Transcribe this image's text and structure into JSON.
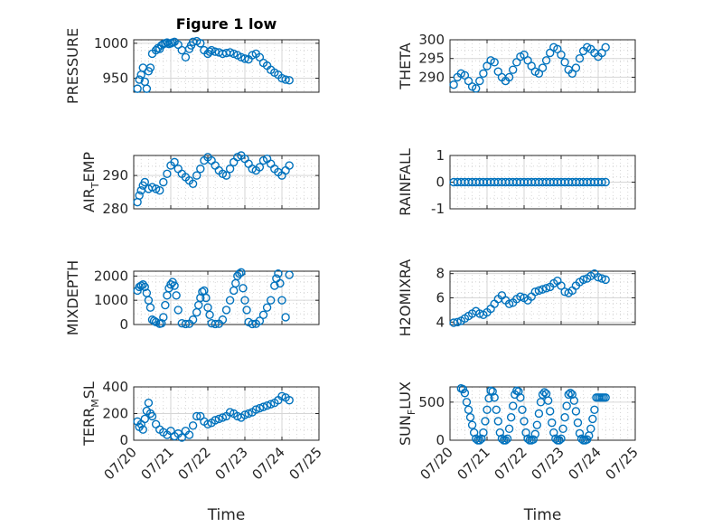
{
  "figure_title": "Figure 1 low",
  "chart_data": [
    {
      "id": "pressure",
      "type": "scatter",
      "title": "Figure 1 low",
      "ylabel": "PRESSURE",
      "xlabel": "",
      "xlim": [
        0,
        5
      ],
      "ylim": [
        930,
        1005
      ],
      "yticks": [
        950,
        1000
      ],
      "ytick_labels": [
        "950",
        "1000"
      ],
      "xticks": [
        0,
        1,
        2,
        3,
        4,
        5
      ],
      "xtick_labels": [],
      "grid": true,
      "color": "#0072BD",
      "series": [
        {
          "x": [
            0.1,
            0.15,
            0.2,
            0.25,
            0.3,
            0.35,
            0.4,
            0.45,
            0.5,
            0.6,
            0.65,
            0.7,
            0.75,
            0.8,
            0.85,
            0.9,
            0.95,
            1.0,
            1.05,
            1.1,
            1.2,
            1.3,
            1.4,
            1.5,
            1.55,
            1.6,
            1.7,
            1.8,
            1.9,
            2.0,
            2.05,
            2.1,
            2.2,
            2.3,
            2.4,
            2.5,
            2.6,
            2.7,
            2.8,
            2.9,
            3.0,
            3.1,
            3.2,
            3.3,
            3.4,
            3.5,
            3.6,
            3.7,
            3.8,
            3.9,
            4.0,
            4.1,
            4.2
          ],
          "y": [
            935,
            948,
            955,
            965,
            945,
            935,
            960,
            965,
            985,
            990,
            993,
            992,
            997,
            999,
            1000,
            1001,
            999,
            1000,
            1001,
            1002,
            998,
            990,
            980,
            992,
            997,
            1002,
            1003,
            1000,
            990,
            985,
            988,
            990,
            988,
            987,
            985,
            986,
            987,
            985,
            983,
            980,
            978,
            977,
            983,
            985,
            980,
            972,
            968,
            962,
            958,
            955,
            950,
            948,
            947
          ]
        }
      ]
    },
    {
      "id": "theta",
      "type": "scatter",
      "title": "",
      "ylabel": "THETA",
      "xlabel": "",
      "xlim": [
        0,
        5
      ],
      "ylim": [
        286,
        300
      ],
      "yticks": [
        290,
        295,
        300
      ],
      "ytick_labels": [
        "290",
        "295",
        "300"
      ],
      "xticks": [
        0,
        1,
        2,
        3,
        4,
        5
      ],
      "xtick_labels": [],
      "grid": true,
      "color": "#0072BD",
      "series": [
        {
          "x": [
            0.1,
            0.2,
            0.3,
            0.4,
            0.5,
            0.6,
            0.7,
            0.8,
            0.9,
            1.0,
            1.1,
            1.2,
            1.3,
            1.4,
            1.5,
            1.6,
            1.7,
            1.8,
            1.9,
            2.0,
            2.1,
            2.2,
            2.3,
            2.4,
            2.5,
            2.6,
            2.7,
            2.8,
            2.9,
            3.0,
            3.1,
            3.2,
            3.3,
            3.4,
            3.5,
            3.6,
            3.7,
            3.8,
            3.9,
            4.0,
            4.1,
            4.2
          ],
          "y": [
            288,
            290,
            291,
            290.5,
            289,
            287.5,
            287,
            289,
            291,
            293,
            294.5,
            294,
            291.5,
            290,
            289,
            290,
            292,
            294,
            295.5,
            296,
            294.5,
            293,
            291.5,
            291,
            292.5,
            294.5,
            296.5,
            298,
            297.5,
            296,
            294,
            292,
            291,
            292.5,
            295,
            297,
            298,
            297.5,
            296.5,
            295.5,
            296.5,
            298
          ]
        }
      ]
    },
    {
      "id": "air_temp",
      "type": "scatter",
      "title": "",
      "ylabel": "AIR_TEMP",
      "ylabel_parts": {
        "main": "AIR",
        "sub": "T",
        "rest": "EMP"
      },
      "xlabel": "",
      "xlim": [
        0,
        5
      ],
      "ylim": [
        280,
        296
      ],
      "yticks": [
        280,
        290
      ],
      "ytick_labels": [
        "280",
        "290"
      ],
      "xticks": [
        0,
        1,
        2,
        3,
        4,
        5
      ],
      "xtick_labels": [],
      "grid": true,
      "color": "#0072BD",
      "series": [
        {
          "x": [
            0.1,
            0.15,
            0.2,
            0.25,
            0.3,
            0.4,
            0.5,
            0.6,
            0.7,
            0.8,
            0.9,
            1.0,
            1.1,
            1.2,
            1.3,
            1.4,
            1.5,
            1.6,
            1.7,
            1.8,
            1.9,
            2.0,
            2.1,
            2.2,
            2.3,
            2.4,
            2.5,
            2.6,
            2.7,
            2.8,
            2.9,
            3.0,
            3.1,
            3.2,
            3.3,
            3.4,
            3.5,
            3.6,
            3.7,
            3.8,
            3.9,
            4.0,
            4.1,
            4.2
          ],
          "y": [
            282,
            284,
            285.5,
            287,
            288,
            286,
            286.5,
            286,
            285.5,
            288,
            290.5,
            293,
            294,
            292,
            290.5,
            289.5,
            288.5,
            287.5,
            290,
            292,
            294.5,
            295.5,
            294.5,
            293,
            291.5,
            290.5,
            290,
            292,
            294,
            295.5,
            296,
            295,
            293.5,
            292,
            291.5,
            292.5,
            294.5,
            295,
            293.5,
            292,
            291,
            290,
            291.5,
            293
          ]
        }
      ]
    },
    {
      "id": "rainfall",
      "type": "scatter",
      "title": "",
      "ylabel": "RAINFALL",
      "xlabel": "",
      "xlim": [
        0,
        5
      ],
      "ylim": [
        -1,
        1
      ],
      "yticks": [
        -1,
        0,
        1
      ],
      "ytick_labels": [
        "-1",
        "0",
        "1"
      ],
      "xticks": [
        0,
        1,
        2,
        3,
        4,
        5
      ],
      "xtick_labels": [],
      "grid": true,
      "color": "#0072BD",
      "series": [
        {
          "x": [
            0.1,
            0.2,
            0.3,
            0.4,
            0.5,
            0.6,
            0.7,
            0.8,
            0.9,
            1.0,
            1.1,
            1.2,
            1.3,
            1.4,
            1.5,
            1.6,
            1.7,
            1.8,
            1.9,
            2.0,
            2.1,
            2.2,
            2.3,
            2.4,
            2.5,
            2.6,
            2.7,
            2.8,
            2.9,
            3.0,
            3.1,
            3.2,
            3.3,
            3.4,
            3.5,
            3.6,
            3.7,
            3.8,
            3.9,
            4.0,
            4.1,
            4.2
          ],
          "y": [
            0,
            0,
            0,
            0,
            0,
            0,
            0,
            0,
            0,
            0,
            0,
            0,
            0,
            0,
            0,
            0,
            0,
            0,
            0,
            0,
            0,
            0,
            0,
            0,
            0,
            0,
            0,
            0,
            0,
            0,
            0,
            0,
            0,
            0,
            0,
            0,
            0,
            0,
            0,
            0,
            0,
            0
          ]
        }
      ]
    },
    {
      "id": "mixdepth",
      "type": "scatter",
      "title": "",
      "ylabel": "MIXDEPTH",
      "xlabel": "",
      "xlim": [
        0,
        5
      ],
      "ylim": [
        0,
        2200
      ],
      "yticks": [
        0,
        1000,
        2000
      ],
      "ytick_labels": [
        "0",
        "1000",
        "2000"
      ],
      "xticks": [
        0,
        1,
        2,
        3,
        4,
        5
      ],
      "xtick_labels": [],
      "grid": true,
      "color": "#0072BD",
      "series": [
        {
          "x": [
            0.1,
            0.15,
            0.2,
            0.25,
            0.3,
            0.35,
            0.4,
            0.45,
            0.5,
            0.55,
            0.6,
            0.7,
            0.75,
            0.8,
            0.85,
            0.9,
            0.95,
            1.0,
            1.05,
            1.1,
            1.15,
            1.2,
            1.3,
            1.4,
            1.5,
            1.6,
            1.7,
            1.75,
            1.8,
            1.85,
            1.9,
            1.95,
            2.0,
            2.05,
            2.1,
            2.2,
            2.3,
            2.4,
            2.5,
            2.6,
            2.7,
            2.75,
            2.8,
            2.85,
            2.9,
            2.95,
            3.0,
            3.05,
            3.1,
            3.2,
            3.3,
            3.4,
            3.5,
            3.6,
            3.7,
            3.8,
            3.85,
            3.9,
            3.95,
            4.0,
            4.1,
            4.2
          ],
          "y": [
            1400,
            1550,
            1600,
            1650,
            1550,
            1300,
            1000,
            700,
            200,
            150,
            100,
            30,
            50,
            300,
            800,
            1200,
            1500,
            1650,
            1750,
            1600,
            1200,
            600,
            50,
            20,
            30,
            200,
            500,
            800,
            1100,
            1350,
            1400,
            1100,
            700,
            400,
            50,
            20,
            30,
            200,
            600,
            1000,
            1400,
            1700,
            2000,
            2100,
            2150,
            1500,
            1000,
            600,
            100,
            20,
            30,
            150,
            400,
            700,
            1000,
            1600,
            1900,
            2100,
            1700,
            1000,
            300,
            2050
          ]
        }
      ]
    },
    {
      "id": "h2omixra",
      "type": "scatter",
      "title": "",
      "ylabel": "H2OMIXRA",
      "xlabel": "",
      "xlim": [
        0,
        5
      ],
      "ylim": [
        3.8,
        8.2
      ],
      "yticks": [
        4,
        6,
        8
      ],
      "ytick_labels": [
        "4",
        "6",
        "8"
      ],
      "xticks": [
        0,
        1,
        2,
        3,
        4,
        5
      ],
      "xtick_labels": [],
      "grid": true,
      "color": "#0072BD",
      "series": [
        {
          "x": [
            0.1,
            0.2,
            0.3,
            0.4,
            0.5,
            0.6,
            0.7,
            0.8,
            0.9,
            1.0,
            1.1,
            1.2,
            1.3,
            1.4,
            1.5,
            1.6,
            1.7,
            1.8,
            1.9,
            2.0,
            2.1,
            2.2,
            2.3,
            2.4,
            2.5,
            2.6,
            2.7,
            2.8,
            2.9,
            3.0,
            3.1,
            3.2,
            3.3,
            3.4,
            3.5,
            3.6,
            3.7,
            3.8,
            3.9,
            4.0,
            4.1,
            4.2
          ],
          "y": [
            3.95,
            4.0,
            4.1,
            4.3,
            4.5,
            4.7,
            4.9,
            4.7,
            4.6,
            4.8,
            5.1,
            5.5,
            5.9,
            6.2,
            5.8,
            5.5,
            5.6,
            5.9,
            6.1,
            6.0,
            5.8,
            6.1,
            6.5,
            6.6,
            6.7,
            6.8,
            6.9,
            7.2,
            7.4,
            7.0,
            6.5,
            6.4,
            6.6,
            7.0,
            7.3,
            7.5,
            7.6,
            7.8,
            8.0,
            7.7,
            7.6,
            7.5
          ]
        }
      ]
    },
    {
      "id": "terr_msl",
      "type": "scatter",
      "title": "",
      "ylabel": "TERR_MSL",
      "ylabel_parts": {
        "main": "TERR",
        "sub": "M",
        "rest": "SL"
      },
      "xlabel": "Time",
      "xlim": [
        0,
        5
      ],
      "ylim": [
        0,
        400
      ],
      "yticks": [
        0,
        200,
        400
      ],
      "ytick_labels": [
        "0",
        "200",
        "400"
      ],
      "xticks": [
        0,
        1,
        2,
        3,
        4,
        5
      ],
      "xtick_labels": [
        "07/20",
        "07/21",
        "07/22",
        "07/23",
        "07/24",
        "07/25"
      ],
      "grid": true,
      "color": "#0072BD",
      "series": [
        {
          "x": [
            0.1,
            0.15,
            0.2,
            0.25,
            0.3,
            0.35,
            0.4,
            0.45,
            0.5,
            0.6,
            0.7,
            0.8,
            0.9,
            1.0,
            1.1,
            1.2,
            1.3,
            1.4,
            1.5,
            1.6,
            1.7,
            1.8,
            1.9,
            2.0,
            2.1,
            2.2,
            2.3,
            2.4,
            2.5,
            2.6,
            2.7,
            2.8,
            2.9,
            3.0,
            3.1,
            3.2,
            3.3,
            3.4,
            3.5,
            3.6,
            3.7,
            3.8,
            3.9,
            4.0,
            4.1,
            4.2
          ],
          "y": [
            140,
            100,
            120,
            80,
            160,
            220,
            280,
            200,
            180,
            120,
            80,
            60,
            40,
            70,
            30,
            50,
            20,
            70,
            40,
            110,
            180,
            180,
            140,
            120,
            130,
            150,
            160,
            170,
            180,
            210,
            200,
            180,
            170,
            190,
            200,
            210,
            230,
            240,
            250,
            260,
            270,
            280,
            300,
            330,
            320,
            300
          ]
        }
      ]
    },
    {
      "id": "sun_flux",
      "type": "scatter",
      "title": "",
      "ylabel": "SUN_FLUX",
      "ylabel_parts": {
        "main": "SUN",
        "sub": "F",
        "rest": "LUX"
      },
      "xlabel": "Time",
      "xlim": [
        0,
        5
      ],
      "ylim": [
        0,
        700
      ],
      "yticks": [
        0,
        500
      ],
      "ytick_labels": [
        "0",
        "500"
      ],
      "xticks": [
        0,
        1,
        2,
        3,
        4,
        5
      ],
      "xtick_labels": [
        "07/20",
        "07/21",
        "07/22",
        "07/23",
        "07/24",
        "07/25"
      ],
      "grid": true,
      "color": "#0072BD",
      "series": [
        {
          "x": [
            0.3,
            0.35,
            0.4,
            0.45,
            0.5,
            0.55,
            0.6,
            0.65,
            0.7,
            0.75,
            0.8,
            0.85,
            0.9,
            0.95,
            1.0,
            1.05,
            1.1,
            1.15,
            1.2,
            1.25,
            1.3,
            1.35,
            1.4,
            1.45,
            1.5,
            1.55,
            1.6,
            1.65,
            1.7,
            1.75,
            1.8,
            1.85,
            1.9,
            1.95,
            2.0,
            2.05,
            2.1,
            2.15,
            2.2,
            2.25,
            2.3,
            2.35,
            2.4,
            2.45,
            2.5,
            2.55,
            2.6,
            2.65,
            2.7,
            2.75,
            2.8,
            2.85,
            2.9,
            2.95,
            3.0,
            3.05,
            3.1,
            3.15,
            3.2,
            3.25,
            3.3,
            3.35,
            3.4,
            3.45,
            3.5,
            3.55,
            3.6,
            3.65,
            3.7,
            3.75,
            3.8,
            3.85,
            3.9,
            3.95,
            4.0,
            4.05,
            4.1,
            4.15,
            4.2
          ],
          "y": [
            680,
            670,
            620,
            500,
            400,
            300,
            200,
            100,
            20,
            0,
            0,
            20,
            100,
            250,
            400,
            550,
            650,
            640,
            560,
            400,
            250,
            100,
            20,
            0,
            0,
            20,
            150,
            300,
            450,
            600,
            650,
            640,
            560,
            400,
            250,
            100,
            20,
            0,
            0,
            10,
            80,
            200,
            350,
            500,
            600,
            630,
            610,
            520,
            380,
            230,
            100,
            20,
            0,
            0,
            20,
            150,
            300,
            450,
            600,
            620,
            600,
            520,
            380,
            230,
            90,
            20,
            0,
            0,
            10,
            60,
            150,
            280,
            400,
            560,
            560,
            560,
            560,
            560,
            560
          ]
        }
      ]
    }
  ]
}
